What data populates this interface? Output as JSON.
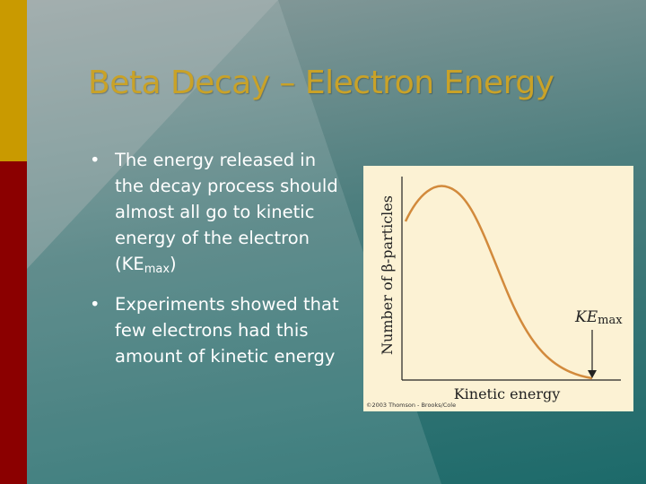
{
  "slide": {
    "title": "Beta Decay – Electron Energy",
    "bullets": [
      {
        "text": "The energy released in the decay process should almost all go to kinetic energy of the electron (KE",
        "subscript": "max",
        "tail": ")"
      },
      {
        "text": "Experiments showed that few electrons had this amount of kinetic energy"
      }
    ]
  },
  "figure": {
    "y_label": "Number of β-particles",
    "x_label": "Kinetic energy",
    "annotation": "KE",
    "annotation_subscript": "max",
    "credit": "©2003 Thomson - Brooks/Cole"
  }
}
